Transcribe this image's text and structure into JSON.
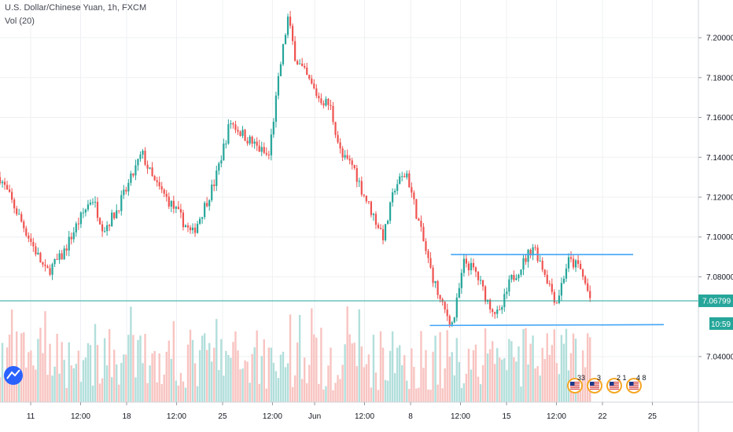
{
  "header": {
    "title": "U.S. Dollar/Chinese Yuan, 1h, FXCM",
    "volume_label": "Vol (20)"
  },
  "colors": {
    "up": "#26a69a",
    "down": "#ef5350",
    "vol_up": "#b2dfdb",
    "vol_down": "#f8c4c1",
    "trend_line": "#42a5f5",
    "price_line": "#26a69a",
    "grid": "#eef0f3",
    "axis_text": "#131722"
  },
  "chart_data": {
    "type": "candlestick",
    "symbol": "U.S. Dollar/Chinese Yuan",
    "interval": "1h",
    "source": "FXCM",
    "y_ticks": [
      "7.20000",
      "7.18000",
      "7.16000",
      "7.14000",
      "7.12000",
      "7.10000",
      "7.08000",
      "7.04000"
    ],
    "x_ticks": [
      "11",
      "12:00",
      "18",
      "12:00",
      "25",
      "12:00",
      "Jun",
      "12:00",
      "8",
      "12:00",
      "15",
      "12:00",
      "22",
      "25"
    ],
    "ylim": [
      7.025,
      7.215
    ],
    "last_price": "7.06799",
    "last_price_value": 7.06799,
    "countdown": "10:59",
    "price_path": [
      [
        0,
        7.13
      ],
      [
        3,
        7.118
      ],
      [
        8,
        7.098
      ],
      [
        12,
        7.082
      ],
      [
        16,
        7.09
      ],
      [
        20,
        7.106
      ],
      [
        24,
        7.12
      ],
      [
        27,
        7.104
      ],
      [
        30,
        7.112
      ],
      [
        33,
        7.124
      ],
      [
        37,
        7.142
      ],
      [
        40,
        7.128
      ],
      [
        44,
        7.118
      ],
      [
        47,
        7.11
      ],
      [
        50,
        7.101
      ],
      [
        53,
        7.114
      ],
      [
        56,
        7.128
      ],
      [
        60,
        7.158
      ],
      [
        63,
        7.152
      ],
      [
        67,
        7.145
      ],
      [
        70,
        7.14
      ],
      [
        73,
        7.185
      ],
      [
        75,
        7.21
      ],
      [
        77,
        7.19
      ],
      [
        80,
        7.18
      ],
      [
        83,
        7.17
      ],
      [
        86,
        7.166
      ],
      [
        89,
        7.14
      ],
      [
        92,
        7.136
      ],
      [
        94,
        7.125
      ],
      [
        97,
        7.112
      ],
      [
        100,
        7.1
      ],
      [
        103,
        7.126
      ],
      [
        106,
        7.132
      ],
      [
        109,
        7.108
      ],
      [
        112,
        7.085
      ],
      [
        115,
        7.066
      ],
      [
        118,
        7.056
      ],
      [
        121,
        7.088
      ],
      [
        124,
        7.082
      ],
      [
        127,
        7.068
      ],
      [
        130,
        7.06
      ],
      [
        133,
        7.078
      ],
      [
        136,
        7.086
      ],
      [
        139,
        7.096
      ],
      [
        142,
        7.082
      ],
      [
        145,
        7.067
      ],
      [
        148,
        7.088
      ],
      [
        151,
        7.085
      ],
      [
        154,
        7.068
      ]
    ],
    "trend_lines": [
      {
        "points": [
          [
            117.5,
            7.0912
          ],
          [
            165,
            7.0912
          ]
        ]
      },
      {
        "points": [
          [
            112,
            7.0556
          ],
          [
            173,
            7.056
          ]
        ]
      }
    ],
    "horizontal_line": 7.06799,
    "events": [
      {
        "icon": "us-flag-icon",
        "count": "33"
      },
      {
        "icon": "us-flag-icon",
        "count": "3"
      },
      {
        "icon": "us-flag-icon",
        "count": "2 1"
      },
      {
        "icon": "us-flag-icon",
        "count": "4 8"
      }
    ]
  }
}
